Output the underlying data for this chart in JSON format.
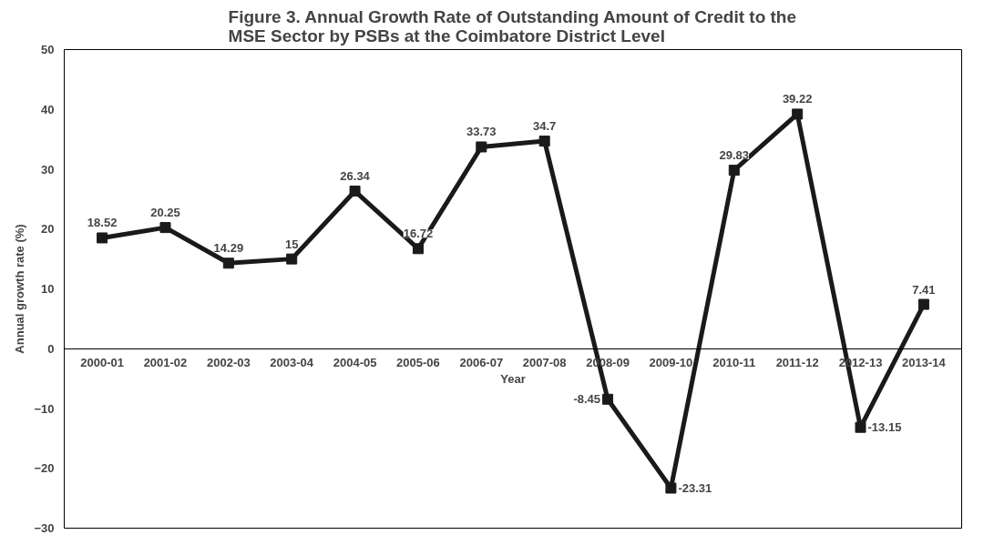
{
  "chart_data": {
    "type": "line",
    "title": "Figure 3. Annual Growth Rate of Outstanding Amount of Credit to the\nMSE Sector by PSBs at the Coimbatore District Level",
    "xlabel": "Year",
    "ylabel": "Annual growth rate (%)",
    "categories": [
      "2000-01",
      "2001-02",
      "2002-03",
      "2003-04",
      "2004-05",
      "2005-06",
      "2006-07",
      "2007-08",
      "2008-09",
      "2009-10",
      "2010-11",
      "2011-12",
      "2012-13",
      "2013-14"
    ],
    "series": [
      {
        "color": "#1a1a1a",
        "values": [
          18.52,
          20.25,
          14.29,
          15,
          26.34,
          16.72,
          33.73,
          34.7,
          -8.45,
          -23.31,
          29.83,
          39.22,
          -13.15,
          7.41
        ]
      }
    ],
    "ylim": [
      -30,
      50
    ],
    "yticks": [
      -30,
      -20,
      -10,
      0,
      10,
      20,
      30,
      40,
      50
    ],
    "grid": false,
    "marker": "square",
    "line_style": "solid",
    "data_labels": true
  }
}
